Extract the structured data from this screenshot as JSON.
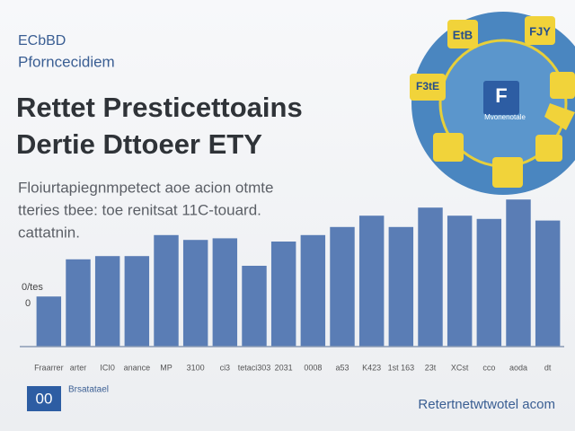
{
  "chart_data": {
    "type": "bar",
    "brand": [
      "ECbBD",
      "Pforncecidiem"
    ],
    "title_lines": [
      "Rettet Presticettoains",
      "Dertie Dttoeer ETY"
    ],
    "subtitle_lines": [
      "Floiurtapiegnmpetect aoe acion otmte",
      "tteries tbee: toe renitsat 11C-touard.",
      "cattatnin."
    ],
    "axis_labels": [
      "0/tes",
      "0"
    ],
    "categories": [
      "Fraarrer",
      "arter",
      "ICI0",
      "anance",
      "MP",
      "3100",
      "ci3",
      "tetaci303",
      "2031",
      "0008",
      "a53",
      "K423",
      "1st 163",
      "23t",
      "XCst",
      "cco",
      "aoda",
      "dt"
    ],
    "values": [
      31,
      54,
      56,
      56,
      69,
      66,
      67,
      50,
      65,
      69,
      74,
      81,
      74,
      86,
      81,
      79,
      91,
      78
    ],
    "color": "#5a7db5",
    "ylim": [
      0,
      100
    ],
    "badge": {
      "icon": "00",
      "text": "Brsatatael"
    },
    "footer": "Retertnetwtwotel acom",
    "gear_labels": [
      "EtB",
      "FJY",
      "F3tE",
      "F",
      "Mvonenotale"
    ]
  }
}
